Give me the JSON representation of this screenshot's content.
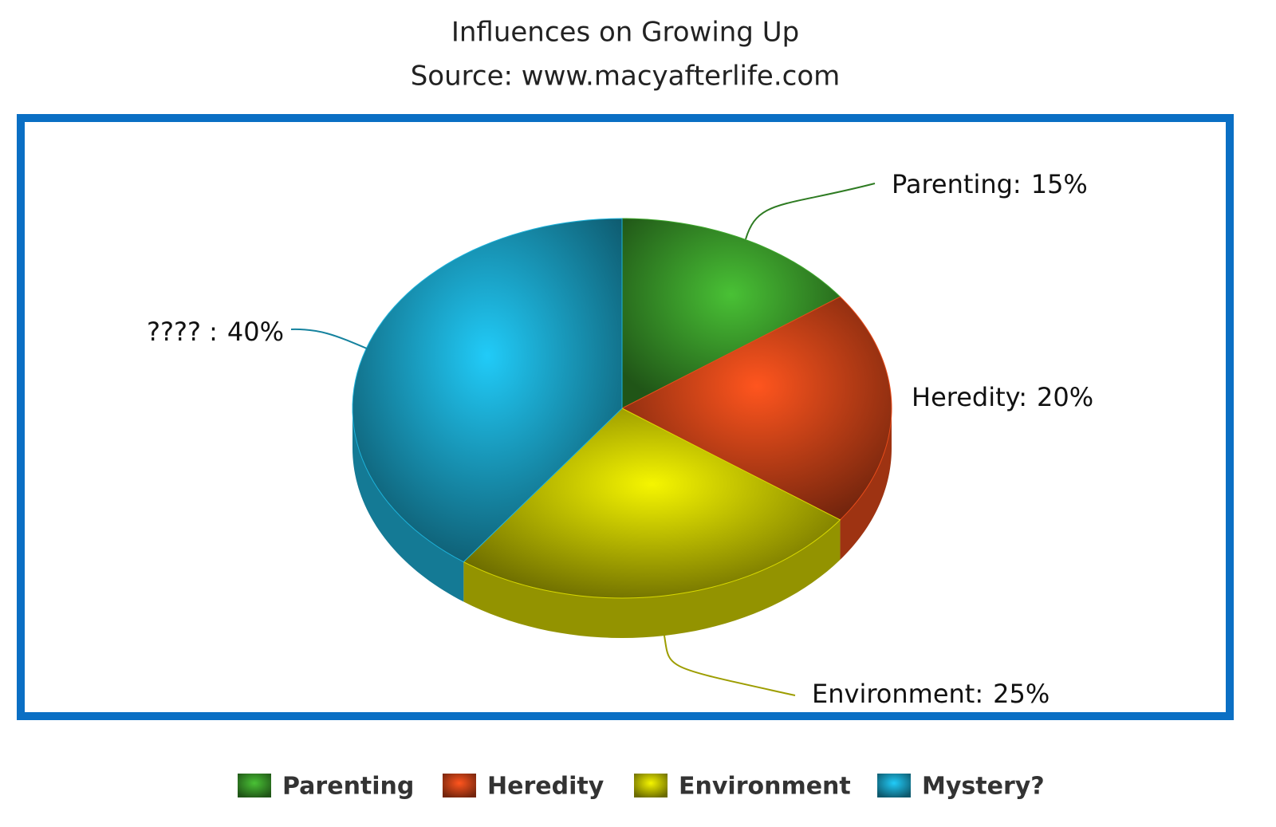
{
  "chart_data": {
    "type": "pie",
    "title": "Influences on Growing Up",
    "subtitle": "Source: www.macyafterlife.com",
    "categories": [
      "Parenting",
      "Heredity",
      "Environment",
      "Mystery?"
    ],
    "slice_labels": [
      "Parenting:",
      "Heredity:",
      "Environment:",
      "???? :"
    ],
    "values": [
      15,
      20,
      25,
      40
    ],
    "value_labels": [
      "15%",
      "20%",
      "25%",
      "40%"
    ],
    "colors": [
      "#3a9a2a",
      "#d24418",
      "#c4c400",
      "#1aa2c6"
    ],
    "legend": "bottom"
  }
}
